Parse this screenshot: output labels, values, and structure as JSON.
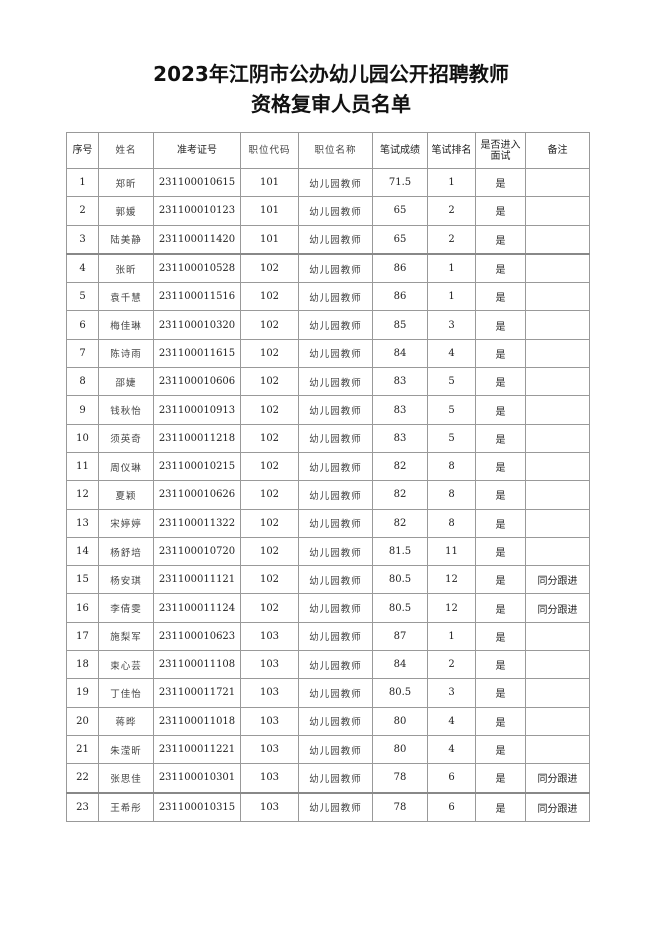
{
  "title": {
    "line1": "2023年江阴市公办幼儿园公开招聘教师",
    "line2": "资格复审人员名单"
  },
  "table": {
    "headers": [
      "序号",
      "姓名",
      "准考证号",
      "职位代码",
      "职位名称",
      "笔试成绩",
      "笔试排名",
      "是否进入面试",
      "备注"
    ],
    "rows": [
      [
        "1",
        "郑昕",
        "231100010615",
        "101",
        "幼儿园教师",
        "71.5",
        "1",
        "是",
        ""
      ],
      [
        "2",
        "郭媛",
        "231100010123",
        "101",
        "幼儿园教师",
        "65",
        "2",
        "是",
        ""
      ],
      [
        "3",
        "陆美静",
        "231100011420",
        "101",
        "幼儿园教师",
        "65",
        "2",
        "是",
        ""
      ],
      [
        "4",
        "张昕",
        "231100010528",
        "102",
        "幼儿园教师",
        "86",
        "1",
        "是",
        ""
      ],
      [
        "5",
        "袁千慧",
        "231100011516",
        "102",
        "幼儿园教师",
        "86",
        "1",
        "是",
        ""
      ],
      [
        "6",
        "梅佳琳",
        "231100010320",
        "102",
        "幼儿园教师",
        "85",
        "3",
        "是",
        ""
      ],
      [
        "7",
        "陈诗雨",
        "231100011615",
        "102",
        "幼儿园教师",
        "84",
        "4",
        "是",
        ""
      ],
      [
        "8",
        "邵婕",
        "231100010606",
        "102",
        "幼儿园教师",
        "83",
        "5",
        "是",
        ""
      ],
      [
        "9",
        "钱秋怡",
        "231100010913",
        "102",
        "幼儿园教师",
        "83",
        "5",
        "是",
        ""
      ],
      [
        "10",
        "须英奇",
        "231100011218",
        "102",
        "幼儿园教师",
        "83",
        "5",
        "是",
        ""
      ],
      [
        "11",
        "周仪琳",
        "231100010215",
        "102",
        "幼儿园教师",
        "82",
        "8",
        "是",
        ""
      ],
      [
        "12",
        "夏颖",
        "231100010626",
        "102",
        "幼儿园教师",
        "82",
        "8",
        "是",
        ""
      ],
      [
        "13",
        "宋婷婷",
        "231100011322",
        "102",
        "幼儿园教师",
        "82",
        "8",
        "是",
        ""
      ],
      [
        "14",
        "杨舒培",
        "231100010720",
        "102",
        "幼儿园教师",
        "81.5",
        "11",
        "是",
        ""
      ],
      [
        "15",
        "杨安琪",
        "231100011121",
        "102",
        "幼儿园教师",
        "80.5",
        "12",
        "是",
        "同分跟进"
      ],
      [
        "16",
        "李倩雯",
        "231100011124",
        "102",
        "幼儿园教师",
        "80.5",
        "12",
        "是",
        "同分跟进"
      ],
      [
        "17",
        "施梨军",
        "231100010623",
        "103",
        "幼儿园教师",
        "87",
        "1",
        "是",
        ""
      ],
      [
        "18",
        "束心芸",
        "231100011108",
        "103",
        "幼儿园教师",
        "84",
        "2",
        "是",
        ""
      ],
      [
        "19",
        "丁佳怡",
        "231100011721",
        "103",
        "幼儿园教师",
        "80.5",
        "3",
        "是",
        ""
      ],
      [
        "20",
        "蒋晔",
        "231100011018",
        "103",
        "幼儿园教师",
        "80",
        "4",
        "是",
        ""
      ],
      [
        "21",
        "朱滢昕",
        "231100011221",
        "103",
        "幼儿园教师",
        "80",
        "4",
        "是",
        ""
      ],
      [
        "22",
        "张思佳",
        "231100010301",
        "103",
        "幼儿园教师",
        "78",
        "6",
        "是",
        "同分跟进"
      ],
      [
        "23",
        "王希彤",
        "231100010315",
        "103",
        "幼儿园教师",
        "78",
        "6",
        "是",
        "同分跟进"
      ]
    ]
  }
}
